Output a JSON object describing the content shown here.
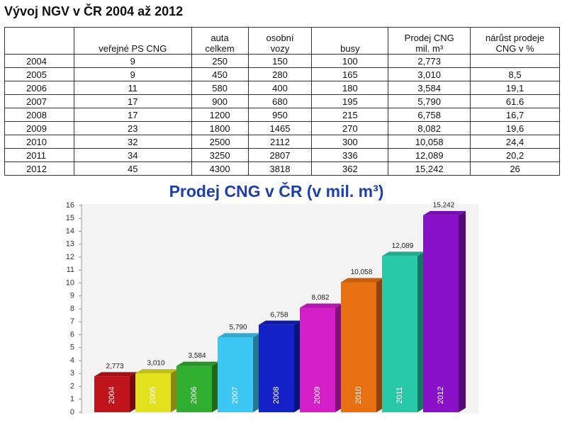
{
  "title": "Vývoj NGV v ČR 2004 až 2012",
  "table": {
    "header": [
      "veřejné PS CNG",
      "auta\ncelkem",
      "osobní\nvozy",
      "busy",
      "Prodej CNG\nmil. m³",
      "nárůst prodeje\nCNG v %"
    ],
    "rows": [
      [
        "2004",
        "9",
        "250",
        "150",
        "100",
        "2,773"
      ],
      [
        "2005",
        "9",
        "450",
        "280",
        "165",
        "3,010",
        "8,5"
      ],
      [
        "2006",
        "11",
        "580",
        "400",
        "180",
        "3,584",
        "19,1"
      ],
      [
        "2007",
        "17",
        "900",
        "680",
        "195",
        "5,790",
        "61.6"
      ],
      [
        "2008",
        "17",
        "1200",
        "950",
        "215",
        "6,758",
        "16,7"
      ],
      [
        "2009",
        "23",
        "1800",
        "1465",
        "270",
        "8,082",
        "19,6"
      ],
      [
        "2010",
        "32",
        "2500",
        "2112",
        "300",
        "10,058",
        "24,4"
      ],
      [
        "2011",
        "34",
        "3250",
        "2807",
        "336",
        "12,089",
        "20,2"
      ],
      [
        "2012",
        "45",
        "4300",
        "3818",
        "362",
        "15,242",
        "26"
      ]
    ]
  },
  "chart_data": {
    "type": "bar",
    "title": "Prodej CNG v ČR (v mil. m³)",
    "categories": [
      "2004",
      "2005",
      "2006",
      "2007",
      "2008",
      "2009",
      "2010",
      "2011",
      "2012"
    ],
    "values": [
      2.773,
      3.01,
      3.584,
      5.79,
      6.758,
      8.082,
      10.058,
      12.089,
      15.242
    ],
    "value_labels": [
      "2,773",
      "3,010",
      "3,584",
      "5,790",
      "6,758",
      "8,082",
      "10,058",
      "12,089",
      "15,242"
    ],
    "colors": [
      "#c0141c",
      "#e2e21c",
      "#2fae2f",
      "#3cc7f5",
      "#1420c8",
      "#d41fc8",
      "#e87010",
      "#27c9a8",
      "#8a10c8"
    ],
    "ylim": [
      0,
      16
    ],
    "yticks": [
      0,
      1,
      2,
      3,
      4,
      5,
      6,
      7,
      8,
      9,
      10,
      11,
      12,
      13,
      14,
      15,
      16
    ]
  }
}
